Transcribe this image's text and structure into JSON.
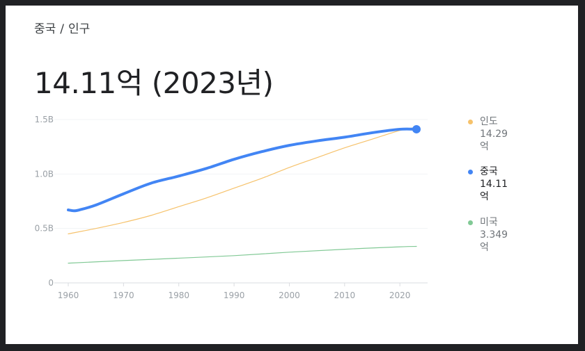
{
  "breadcrumb": {
    "country": "중국",
    "separator": "/",
    "topic": "인구"
  },
  "headline": {
    "value": "14.11억",
    "year": "(2023년)"
  },
  "legend": [
    {
      "name": "인도",
      "value": "14.29억",
      "color": "#f6c26b",
      "selected": false
    },
    {
      "name": "중국",
      "value": "14.11억",
      "color": "#4285f4",
      "selected": true
    },
    {
      "name": "미국",
      "value": "3.349억",
      "color": "#81c995",
      "selected": false
    }
  ],
  "chart_data": {
    "type": "line",
    "xlim": [
      1960,
      2023
    ],
    "ylim": [
      0,
      1500000000
    ],
    "x_ticks": [
      1960,
      1970,
      1980,
      1990,
      2000,
      2010,
      2020
    ],
    "y_ticks": [
      0,
      500000000,
      1000000000,
      1500000000
    ],
    "y_tick_labels": [
      "0",
      "0.5B",
      "1.0B",
      "1.5B"
    ],
    "grid": "horizontal",
    "legend_position": "right",
    "series": [
      {
        "name": "인도",
        "color": "#f6c26b",
        "emphasized": false,
        "x": [
          1960,
          1965,
          1970,
          1975,
          1980,
          1985,
          1990,
          1995,
          2000,
          2005,
          2010,
          2015,
          2020,
          2023
        ],
        "values": [
          450000000,
          500000000,
          555000000,
          620000000,
          700000000,
          780000000,
          870000000,
          960000000,
          1060000000,
          1150000000,
          1240000000,
          1320000000,
          1400000000,
          1429000000
        ]
      },
      {
        "name": "중국",
        "color": "#4285f4",
        "emphasized": true,
        "x": [
          1960,
          1961,
          1962,
          1965,
          1970,
          1975,
          1980,
          1985,
          1990,
          1995,
          2000,
          2005,
          2010,
          2015,
          2020,
          2023
        ],
        "values": [
          670000000,
          662000000,
          670000000,
          715000000,
          818000000,
          916000000,
          981000000,
          1051000000,
          1135000000,
          1205000000,
          1263000000,
          1304000000,
          1338000000,
          1379000000,
          1411000000,
          1411000000
        ]
      },
      {
        "name": "미국",
        "color": "#81c995",
        "emphasized": false,
        "x": [
          1960,
          1970,
          1980,
          1990,
          2000,
          2010,
          2020,
          2023
        ],
        "values": [
          181000000,
          205000000,
          227000000,
          250000000,
          282000000,
          309000000,
          331000000,
          334900000
        ]
      }
    ]
  }
}
